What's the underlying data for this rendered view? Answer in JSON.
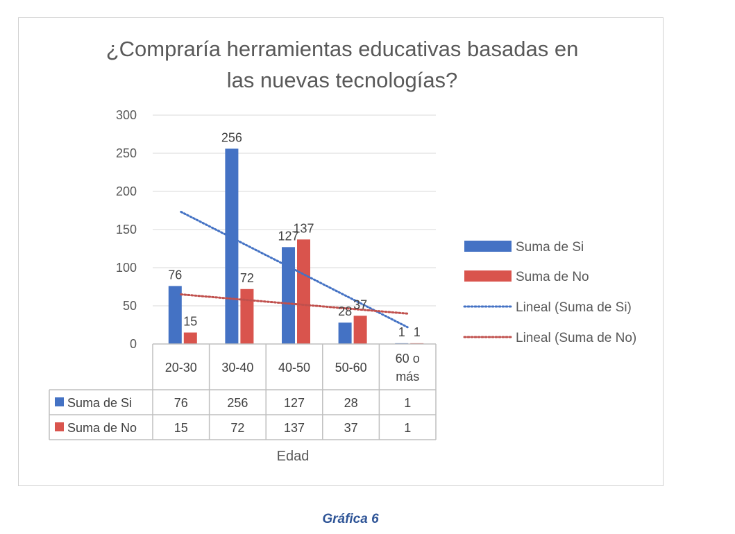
{
  "chart_data": {
    "type": "bar",
    "title_lines": [
      "¿Compraría herramientas educativas basadas en",
      "las nuevas tecnologías?"
    ],
    "xlabel": "Edad",
    "ylabel": "",
    "categories": [
      "20-30",
      "30-40",
      "40-50",
      "50-60",
      "60 o más"
    ],
    "category_lines": [
      [
        "20-30"
      ],
      [
        "30-40"
      ],
      [
        "40-50"
      ],
      [
        "50-60"
      ],
      [
        "60 o",
        "más"
      ]
    ],
    "series": [
      {
        "name": "Suma de Si",
        "values": [
          76,
          256,
          127,
          28,
          1
        ],
        "color": "#4472c4"
      },
      {
        "name": "Suma de No",
        "values": [
          15,
          72,
          137,
          37,
          1
        ],
        "color": "#d9544d"
      }
    ],
    "trendlines": [
      {
        "name": "Lineal (Suma de Si)",
        "type": "linear",
        "of": "Suma de Si",
        "color": "#4472c4"
      },
      {
        "name": "Lineal (Suma de No)",
        "type": "linear",
        "of": "Suma de No",
        "color": "#c0504d"
      }
    ],
    "ylim": [
      0,
      300
    ],
    "yticks": [
      0,
      50,
      100,
      150,
      200,
      250,
      300
    ],
    "grid": true,
    "legend_position": "right",
    "data_table": true
  },
  "caption": "Gráfica 6"
}
